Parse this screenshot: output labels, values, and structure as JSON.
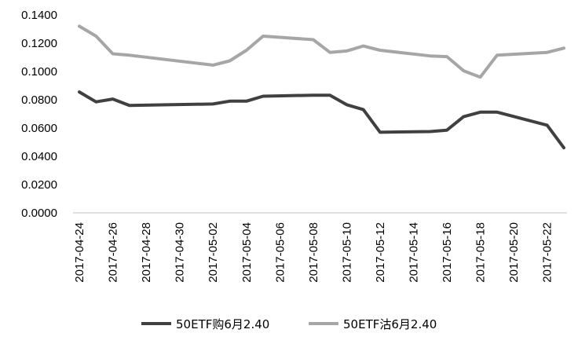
{
  "chart_data": {
    "type": "line",
    "title": "",
    "xlabel": "",
    "ylabel": "",
    "ylim": [
      0,
      0.14
    ],
    "yticks": [
      "0.0000",
      "0.0200",
      "0.0400",
      "0.0600",
      "0.0800",
      "0.1000",
      "0.1200",
      "0.1400"
    ],
    "grid": false,
    "legend_position": "bottom",
    "xtick_labels": [
      "2017-04-24",
      "2017-04-26",
      "2017-04-28",
      "2017-04-30",
      "2017-05-02",
      "2017-05-04",
      "2017-05-06",
      "2017-05-08",
      "2017-05-10",
      "2017-05-12",
      "2017-05-14",
      "2017-05-16",
      "2017-05-18",
      "2017-05-20",
      "2017-05-22"
    ],
    "x": [
      "2017-04-24",
      "2017-04-25",
      "2017-04-26",
      "2017-04-27",
      "2017-05-02",
      "2017-05-03",
      "2017-05-04",
      "2017-05-05",
      "2017-05-08",
      "2017-05-09",
      "2017-05-10",
      "2017-05-11",
      "2017-05-12",
      "2017-05-15",
      "2017-05-16",
      "2017-05-17",
      "2017-05-18",
      "2017-05-19",
      "2017-05-22",
      "2017-05-23"
    ],
    "series": [
      {
        "name": "50ETF购6月2.40",
        "color": "#404040",
        "values": [
          0.0855,
          0.0785,
          0.0805,
          0.076,
          0.077,
          0.079,
          0.079,
          0.0825,
          0.0832,
          0.0832,
          0.0765,
          0.073,
          0.057,
          0.0575,
          0.0585,
          0.068,
          0.0712,
          0.0712,
          0.062,
          0.046
        ]
      },
      {
        "name": "50ETF沽6月2.40",
        "color": "#a6a6a6",
        "values": [
          0.132,
          0.125,
          0.1125,
          0.1115,
          0.1045,
          0.1075,
          0.115,
          0.125,
          0.1225,
          0.1135,
          0.1145,
          0.118,
          0.115,
          0.111,
          0.1105,
          0.1005,
          0.096,
          0.1115,
          0.1135,
          0.1165
        ]
      }
    ]
  }
}
